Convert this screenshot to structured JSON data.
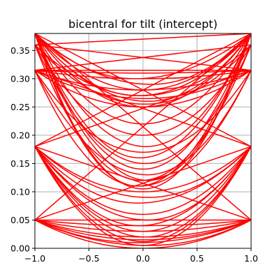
{
  "chart_data": {
    "type": "line",
    "title": "bicentral for tilt (intercept)",
    "xlabel": "",
    "ylabel": "",
    "xlim": [
      -1.0,
      1.0
    ],
    "ylim": [
      0.0,
      0.38
    ],
    "grid": true,
    "line_color": "#ff0000",
    "x_ticks": [
      -1.0,
      -0.5,
      0.0,
      0.5,
      1.0
    ],
    "x_tick_labels": [
      "−1.0",
      "−0.5",
      "0.0",
      "0.5",
      "1.0"
    ],
    "y_ticks": [
      0.0,
      0.05,
      0.1,
      0.15,
      0.2,
      0.25,
      0.3,
      0.35
    ],
    "y_tick_labels": [
      "0.00",
      "0.05",
      "0.10",
      "0.15",
      "0.20",
      "0.25",
      "0.30",
      "0.35"
    ],
    "families": [
      {
        "edge_value": 0.38,
        "curves": [
          {
            "min_y": 0.25,
            "min_x": 0.0
          },
          {
            "min_y": 0.26,
            "min_x": 0.05
          },
          {
            "min_y": 0.27,
            "min_x": -0.05
          },
          {
            "min_y": 0.28,
            "min_x": 0.0
          },
          {
            "min_y": 0.29,
            "min_x": 0.08
          },
          {
            "min_y": 0.3,
            "min_x": -0.08
          },
          {
            "min_y": 0.22,
            "min_x": 0.0
          },
          {
            "min_y": 0.18,
            "min_x": 0.03
          },
          {
            "min_y": 0.16,
            "min_x": -0.03
          },
          {
            "min_y": 0.14,
            "min_x": 0.0
          },
          {
            "min_y": 0.12,
            "min_x": 0.05
          },
          {
            "min_y": 0.11,
            "min_x": -0.05
          },
          {
            "min_y": 0.105,
            "min_x": 0.0
          }
        ]
      },
      {
        "edge_value": 0.36,
        "curves": [
          {
            "min_y": 0.255,
            "min_x": 0.02
          },
          {
            "min_y": 0.27,
            "min_x": -0.02
          },
          {
            "min_y": 0.2,
            "min_x": 0.0
          },
          {
            "min_y": 0.15,
            "min_x": 0.02
          },
          {
            "min_y": 0.12,
            "min_x": -0.02
          }
        ]
      },
      {
        "edge_value": 0.315,
        "curves": [
          {
            "min_y": 0.25,
            "min_x": 0.0
          },
          {
            "min_y": 0.265,
            "min_x": 0.03
          },
          {
            "min_y": 0.28,
            "min_x": -0.03
          },
          {
            "min_y": 0.3,
            "min_x": 0.0
          },
          {
            "min_y": 0.31,
            "min_x": 0.0
          },
          {
            "min_y": 0.17,
            "min_x": 0.0
          },
          {
            "min_y": 0.13,
            "min_x": 0.04
          },
          {
            "min_y": 0.11,
            "min_x": -0.04
          }
        ]
      },
      {
        "edge_value": 0.18,
        "curves": [
          {
            "min_y": 0.1,
            "min_x": 0.0
          },
          {
            "min_y": 0.09,
            "min_x": 0.05
          },
          {
            "min_y": 0.08,
            "min_x": -0.05
          },
          {
            "min_y": 0.06,
            "min_x": 0.0
          },
          {
            "min_y": 0.05,
            "min_x": 0.04
          },
          {
            "min_y": 0.04,
            "min_x": -0.04
          },
          {
            "min_y": 0.03,
            "min_x": 0.0
          },
          {
            "min_y": 0.02,
            "min_x": 0.02
          },
          {
            "min_y": 0.012,
            "min_x": 0.0
          },
          {
            "min_y": 0.005,
            "min_x": 0.0
          }
        ]
      },
      {
        "edge_value": 0.05,
        "curves": [
          {
            "min_y": 0.0,
            "min_x": 0.0
          },
          {
            "min_y": 0.005,
            "min_x": 0.05
          },
          {
            "min_y": 0.01,
            "min_x": -0.05
          },
          {
            "min_y": 0.015,
            "min_x": 0.0
          },
          {
            "min_y": 0.02,
            "min_x": 0.03
          },
          {
            "min_y": 0.03,
            "min_x": 0.0
          },
          {
            "min_y": 0.04,
            "min_x": 0.0
          }
        ]
      }
    ],
    "cross_lines": [
      {
        "x": [
          -1.0,
          1.0
        ],
        "y": [
          0.38,
          0.18
        ]
      },
      {
        "x": [
          -1.0,
          1.0
        ],
        "y": [
          0.18,
          0.38
        ]
      },
      {
        "x": [
          -1.0,
          1.0
        ],
        "y": [
          0.315,
          0.36
        ]
      },
      {
        "x": [
          -1.0,
          1.0
        ],
        "y": [
          0.36,
          0.315
        ]
      },
      {
        "x": [
          -1.0,
          1.0
        ],
        "y": [
          0.18,
          0.05
        ]
      },
      {
        "x": [
          -1.0,
          1.0
        ],
        "y": [
          0.05,
          0.18
        ]
      },
      {
        "x": [
          -1.0,
          1.0
        ],
        "y": [
          0.315,
          0.18
        ]
      },
      {
        "x": [
          -1.0,
          1.0
        ],
        "y": [
          0.18,
          0.315
        ]
      },
      {
        "x": [
          -1.0,
          1.0
        ],
        "y": [
          0.38,
          0.05
        ]
      },
      {
        "x": [
          -1.0,
          1.0
        ],
        "y": [
          0.05,
          0.38
        ]
      },
      {
        "x": [
          -1.0,
          1.0
        ],
        "y": [
          0.315,
          0.315
        ]
      },
      {
        "x": [
          -1.0,
          1.0
        ],
        "y": [
          0.36,
          0.38
        ]
      },
      {
        "x": [
          -1.0,
          1.0
        ],
        "y": [
          0.05,
          0.05
        ]
      }
    ]
  }
}
